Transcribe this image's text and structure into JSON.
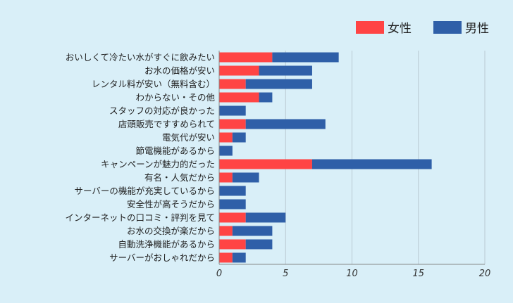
{
  "chart_data": {
    "type": "bar",
    "orientation": "horizontal",
    "stacked": true,
    "categories": [
      "おいしくて冷たい水がすぐに飲みたい",
      "お水の価格が安い",
      "レンタル料が安い（無料含む）",
      "わからない・その他",
      "スタッフの対応が良かった",
      "店頭販売ですすめられて",
      "電気代が安い",
      "節電機能があるから",
      "キャンペーンが魅力的だった",
      "有名・人気だから",
      "サーバーの機能が充実しているから",
      "安全性が高そうだから",
      "インターネットの口コミ・評判を見て",
      "お水の交換が楽だから",
      "自動洗浄機能があるから",
      "サーバーがおしゃれだから"
    ],
    "series": [
      {
        "name": "女性",
        "color": "#ff4444",
        "values": [
          4,
          3,
          2,
          3,
          0,
          2,
          1,
          0,
          7,
          1,
          0,
          0,
          2,
          1,
          2,
          1
        ]
      },
      {
        "name": "男性",
        "color": "#2f5fa8",
        "values": [
          5,
          4,
          5,
          1,
          2,
          6,
          1,
          1,
          9,
          2,
          2,
          2,
          3,
          3,
          2,
          1
        ]
      }
    ],
    "xlim": [
      0,
      20
    ],
    "xticks": [
      0,
      5,
      10,
      15,
      20
    ],
    "grid": "vertical",
    "legend": "top-right"
  }
}
